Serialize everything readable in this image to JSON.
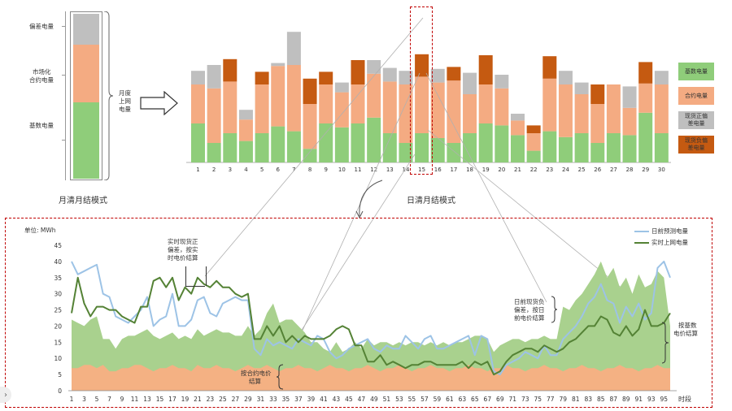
{
  "left_panel": {
    "labels": {
      "deviation": "偏差电量",
      "market_l1": "市场化",
      "market_l2": "合约电量",
      "base": "基数电量"
    },
    "brace_l1": "月度",
    "brace_l2": "上网",
    "brace_l3": "电量",
    "caption": "月清月结模式"
  },
  "top_chart": {
    "caption": "日清月结模式",
    "legend": [
      "基数电量",
      "合约电量",
      "现货正偏差电量",
      "现货负偏差电量"
    ],
    "days": [
      "1",
      "2",
      "3",
      "4",
      "5",
      "6",
      "7",
      "8",
      "9",
      "10",
      "11",
      "12",
      "13",
      "14",
      "15",
      "16",
      "17",
      "18",
      "19",
      "20",
      "21",
      "22",
      "23",
      "24",
      "25",
      "26",
      "27",
      "28",
      "29",
      "30"
    ],
    "base": [
      40,
      20,
      30,
      22,
      30,
      37,
      32,
      14,
      40,
      36,
      40,
      46,
      30,
      20,
      30,
      25,
      20,
      30,
      40,
      38,
      28,
      12,
      32,
      26,
      30,
      20,
      30,
      28,
      51,
      30
    ],
    "con": [
      40,
      56,
      53,
      22,
      50,
      62,
      68,
      46,
      40,
      36,
      40,
      45,
      53,
      60,
      58,
      57,
      64,
      40,
      40,
      38,
      15,
      18,
      54,
      54,
      40,
      40,
      50,
      28,
      30,
      50
    ],
    "pos": [
      14,
      24,
      0,
      10,
      0,
      3,
      34,
      0,
      0,
      10,
      0,
      14,
      14,
      14,
      0,
      14,
      0,
      22,
      0,
      14,
      7,
      0,
      0,
      14,
      12,
      0,
      0,
      22,
      0,
      14
    ],
    "neg": [
      0,
      0,
      23,
      0,
      13,
      0,
      0,
      26,
      13,
      0,
      25,
      0,
      0,
      0,
      23,
      0,
      14,
      0,
      30,
      0,
      0,
      8,
      23,
      0,
      0,
      20,
      0,
      0,
      22,
      0
    ],
    "colors": {
      "base": "#8fcd7a",
      "contract": "#f4ab82",
      "pos": "#bfbfbf",
      "neg": "#c55a11"
    }
  },
  "bottom_chart": {
    "unit": "单位: MWh",
    "ylim": [
      0,
      45
    ],
    "yticks": [
      "0",
      "5",
      "10",
      "15",
      "20",
      "25",
      "30",
      "35",
      "40",
      "45"
    ],
    "xlabel": "时段",
    "xticks": [
      "1",
      "3",
      "5",
      "7",
      "9",
      "11",
      "13",
      "15",
      "17",
      "19",
      "21",
      "23",
      "25",
      "27",
      "29",
      "31",
      "33",
      "35",
      "37",
      "39",
      "41",
      "43",
      "45",
      "47",
      "49",
      "51",
      "53",
      "55",
      "57",
      "59",
      "61",
      "63",
      "65",
      "67",
      "69",
      "71",
      "73",
      "75",
      "77",
      "79",
      "81",
      "83",
      "85",
      "87",
      "89",
      "91",
      "93",
      "95"
    ],
    "series": [
      {
        "name": "日前预测电量",
        "color": "#9dc3e6"
      },
      {
        "name": "实时上网电量",
        "color": "#548235"
      }
    ],
    "forecast": [
      40,
      36,
      37,
      38,
      39,
      30,
      29,
      23,
      22,
      21,
      23,
      25,
      29,
      20,
      22,
      23,
      30,
      20,
      20,
      22,
      28,
      29,
      24,
      23,
      27,
      28,
      29,
      28,
      28,
      13,
      11,
      16,
      14,
      15,
      14,
      13,
      16,
      15,
      14,
      17,
      16,
      12,
      10,
      11,
      13,
      14,
      15,
      16,
      13,
      12,
      14,
      13,
      13,
      17,
      15,
      13,
      16,
      17,
      13,
      13,
      14,
      15,
      16,
      17,
      11,
      17,
      16,
      6,
      5,
      8,
      9,
      10,
      12,
      11,
      10,
      14,
      11,
      11,
      16,
      18,
      20,
      23,
      27,
      29,
      33,
      28,
      27,
      21,
      26,
      23,
      27,
      22,
      24,
      38,
      40,
      35
    ],
    "actual": [
      24,
      35,
      27,
      23,
      26,
      26,
      25,
      25,
      23,
      22,
      21,
      26,
      26,
      34,
      35,
      32,
      35,
      28,
      32,
      30,
      35,
      33,
      32,
      34,
      32,
      32,
      30,
      29,
      30,
      16,
      16,
      20,
      17,
      20,
      15,
      17,
      15,
      17,
      16,
      16,
      16,
      17,
      19,
      20,
      19,
      14,
      14,
      9,
      9,
      11,
      8,
      9,
      8,
      7,
      8,
      8,
      9,
      9,
      8,
      8,
      8,
      8,
      9,
      7,
      9,
      8,
      9,
      5,
      6,
      9,
      11,
      12,
      13,
      13,
      12,
      14,
      13,
      12,
      13,
      15,
      16,
      18,
      20,
      20,
      23,
      22,
      18,
      17,
      20,
      17,
      19,
      25,
      20,
      20,
      21,
      24
    ],
    "band_top": [
      22,
      21,
      20,
      22,
      23,
      16,
      16,
      13,
      16,
      17,
      17,
      18,
      19,
      17,
      16,
      17,
      18,
      16,
      17,
      16,
      19,
      17,
      18,
      19,
      18,
      18,
      17,
      17,
      20,
      17,
      19,
      24,
      27,
      21,
      22,
      22,
      20,
      18,
      15,
      15,
      13,
      12,
      15,
      12,
      13,
      15,
      13,
      16,
      14,
      15,
      15,
      14,
      15,
      14,
      15,
      15,
      14,
      15,
      14,
      15,
      14,
      15,
      15,
      16,
      17,
      17,
      16,
      12,
      14,
      15,
      16,
      16,
      15,
      16,
      16,
      17,
      16,
      16,
      26,
      25,
      28,
      30,
      33,
      36,
      40,
      35,
      38,
      32,
      35,
      30,
      36,
      32,
      33,
      37,
      35,
      20
    ],
    "contract": [
      7,
      7,
      8,
      8,
      7,
      8,
      6,
      6,
      7,
      7,
      8,
      8,
      7,
      6,
      7,
      7,
      8,
      7,
      7,
      6,
      8,
      7,
      7,
      8,
      7,
      7,
      6,
      7,
      8,
      7,
      7,
      8,
      7,
      6,
      7,
      7,
      8,
      7,
      7,
      6,
      7,
      8,
      7,
      7,
      6,
      7,
      7,
      8,
      7,
      6,
      7,
      7,
      8,
      7,
      6,
      7,
      7,
      8,
      7,
      7,
      6,
      7,
      7,
      8,
      7,
      7,
      6,
      7,
      7,
      8,
      7,
      7,
      6,
      7,
      7,
      8,
      7,
      7,
      6,
      7,
      7,
      8,
      7,
      7,
      6,
      7,
      7,
      8,
      7,
      7,
      6,
      7,
      7,
      8,
      7,
      7
    ],
    "ann_rt_l1": "实时现货正",
    "ann_rt_l2": "偏差，按实",
    "ann_rt_l3": "时电价结算",
    "ann_con_l1": "按合约电价",
    "ann_con_l2": "结算",
    "ann_da_l1": "日前现货负",
    "ann_da_l2": "偏差，按日",
    "ann_da_l3": "前电价结算",
    "ann_base_l1": "按基数",
    "ann_base_l2": "电价结算"
  }
}
